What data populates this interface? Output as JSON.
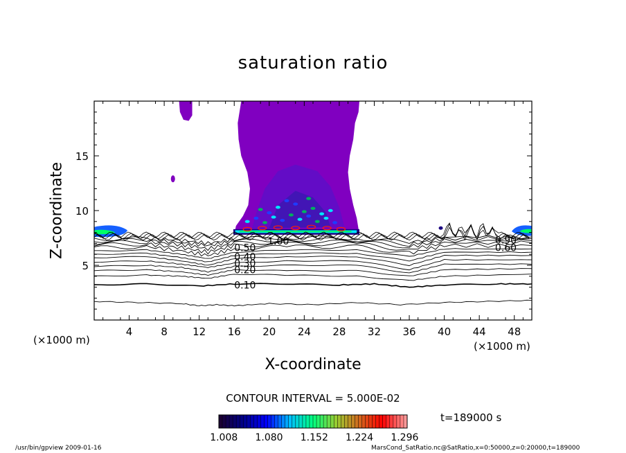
{
  "chart_data": {
    "type": "contour",
    "title": "saturation ratio",
    "xlabel": "X-coordinate",
    "ylabel": "Z-coordinate",
    "x_unit_left": "(×1000 m)",
    "x_unit_right": "(×1000 m)",
    "xlim": [
      0,
      50
    ],
    "ylim": [
      0,
      20
    ],
    "x_ticks": [
      4,
      8,
      12,
      16,
      20,
      24,
      28,
      32,
      36,
      40,
      44,
      48
    ],
    "y_ticks": [
      5,
      10,
      15
    ],
    "contour_interval_text": "CONTOUR INTERVAL = 5.000E-02",
    "contour_labels": [
      "0.10",
      "0.20",
      "0.30",
      "0.40",
      "0.50",
      "0.60",
      "0.90",
      "1.00"
    ],
    "colorbar_ticks": [
      "1.008",
      "1.080",
      "1.152",
      "1.224",
      "1.296"
    ],
    "colorbar_range": [
      1.0,
      1.3
    ],
    "colorbar_colors": [
      "#1a0033",
      "#00008b",
      "#0000ff",
      "#00bfff",
      "#00ff7f",
      "#9acd32",
      "#d2691e",
      "#ff0000",
      "#ff9999"
    ],
    "time_label": "t=189000 s",
    "program_label": "/usr/bin/gpview   2009-01-16",
    "source_label": "MarsCond_SatRatio.nc@SatRatio,x=0:50000,z=0:20000,t=189000",
    "plume_region": {
      "x_range": [
        16,
        30
      ],
      "z_range": [
        7.8,
        20
      ]
    },
    "saturated_color": "#8000c0",
    "contour_lines": [
      {
        "level": 0.1,
        "points": [
          [
            0,
            1.7
          ],
          [
            5,
            1.6
          ],
          [
            10,
            1.5
          ],
          [
            12,
            1.3
          ],
          [
            14,
            1.4
          ],
          [
            16,
            1.3
          ],
          [
            20,
            1.5
          ],
          [
            25,
            1.4
          ],
          [
            30,
            1.6
          ],
          [
            35,
            1.4
          ],
          [
            40,
            1.6
          ],
          [
            45,
            1.7
          ],
          [
            50,
            1.8
          ]
        ]
      },
      {
        "level": 0.1,
        "points": [
          [
            0,
            3.2
          ],
          [
            6,
            3.3
          ],
          [
            12,
            3.1
          ],
          [
            16,
            3.3
          ],
          [
            22,
            3.3
          ],
          [
            28,
            3.2
          ],
          [
            32,
            3.3
          ],
          [
            36,
            3.0
          ],
          [
            40,
            3.2
          ],
          [
            46,
            3.3
          ],
          [
            50,
            3.3
          ]
        ]
      },
      {
        "level": 0.15,
        "points": [
          [
            0,
            4.0
          ],
          [
            6,
            4.1
          ],
          [
            10,
            4.0
          ],
          [
            13,
            3.8
          ],
          [
            16,
            4.2
          ],
          [
            22,
            4.1
          ],
          [
            30,
            4.0
          ],
          [
            36,
            3.6
          ],
          [
            40,
            4.0
          ],
          [
            50,
            4.2
          ]
        ]
      },
      {
        "level": 0.2,
        "points": [
          [
            0,
            4.5
          ],
          [
            6,
            4.6
          ],
          [
            10,
            4.4
          ],
          [
            13,
            4.1
          ],
          [
            16,
            4.6
          ],
          [
            22,
            4.5
          ],
          [
            30,
            4.5
          ],
          [
            36,
            4.0
          ],
          [
            40,
            4.6
          ],
          [
            50,
            4.7
          ]
        ]
      },
      {
        "level": 0.25,
        "points": [
          [
            0,
            4.9
          ],
          [
            6,
            5.0
          ],
          [
            10,
            4.8
          ],
          [
            13,
            4.4
          ],
          [
            16,
            4.9
          ],
          [
            22,
            5.0
          ],
          [
            30,
            5.0
          ],
          [
            36,
            4.3
          ],
          [
            40,
            5.1
          ],
          [
            50,
            5.1
          ]
        ]
      },
      {
        "level": 0.3,
        "points": [
          [
            0,
            5.3
          ],
          [
            6,
            5.4
          ],
          [
            10,
            5.1
          ],
          [
            13,
            4.8
          ],
          [
            16,
            5.2
          ],
          [
            22,
            5.4
          ],
          [
            30,
            5.4
          ],
          [
            36,
            4.6
          ],
          [
            40,
            5.5
          ],
          [
            50,
            5.5
          ]
        ]
      },
      {
        "level": 0.35,
        "points": [
          [
            0,
            5.7
          ],
          [
            6,
            5.8
          ],
          [
            10,
            5.4
          ],
          [
            13,
            5.0
          ],
          [
            16,
            5.6
          ],
          [
            22,
            5.8
          ],
          [
            30,
            5.8
          ],
          [
            36,
            5.0
          ],
          [
            40,
            5.9
          ],
          [
            50,
            5.9
          ]
        ]
      },
      {
        "level": 0.4,
        "points": [
          [
            0,
            6.0
          ],
          [
            6,
            6.1
          ],
          [
            10,
            5.7
          ],
          [
            13,
            5.3
          ],
          [
            16,
            5.9
          ],
          [
            22,
            6.1
          ],
          [
            30,
            6.1
          ],
          [
            36,
            5.4
          ],
          [
            40,
            6.2
          ],
          [
            50,
            6.2
          ]
        ]
      },
      {
        "level": 0.45,
        "points": [
          [
            0,
            6.3
          ],
          [
            6,
            6.4
          ],
          [
            10,
            6.0
          ],
          [
            13,
            5.6
          ],
          [
            16,
            6.2
          ],
          [
            22,
            6.4
          ],
          [
            30,
            6.4
          ],
          [
            36,
            5.8
          ],
          [
            40,
            6.5
          ],
          [
            50,
            6.5
          ]
        ]
      },
      {
        "level": 0.5,
        "points": [
          [
            0,
            6.6
          ],
          [
            6,
            6.7
          ],
          [
            10,
            6.3
          ],
          [
            13,
            5.9
          ],
          [
            16,
            6.5
          ],
          [
            22,
            6.7
          ],
          [
            30,
            6.7
          ],
          [
            36,
            6.1
          ],
          [
            40,
            6.8
          ],
          [
            50,
            6.8
          ]
        ]
      },
      {
        "level": 0.55,
        "points": [
          [
            0,
            6.85
          ],
          [
            6,
            6.95
          ],
          [
            10,
            6.6
          ],
          [
            13,
            6.2
          ],
          [
            16,
            6.8
          ],
          [
            22,
            6.95
          ],
          [
            30,
            6.95
          ],
          [
            36,
            6.4
          ],
          [
            40,
            7.05
          ],
          [
            50,
            7.05
          ]
        ]
      },
      {
        "level": 0.6,
        "points": [
          [
            0,
            7.05
          ],
          [
            6,
            7.15
          ],
          [
            10,
            6.9
          ],
          [
            13,
            6.5
          ],
          [
            16,
            7.0
          ],
          [
            22,
            7.15
          ],
          [
            30,
            7.15
          ],
          [
            36,
            6.7
          ],
          [
            40,
            7.25
          ],
          [
            50,
            7.25
          ]
        ]
      },
      {
        "level": 0.7,
        "points": [
          [
            0,
            7.25
          ],
          [
            6,
            7.3
          ],
          [
            10,
            7.1
          ],
          [
            13,
            6.8
          ],
          [
            16,
            7.2
          ],
          [
            22,
            7.35
          ],
          [
            30,
            7.35
          ],
          [
            36,
            6.9
          ],
          [
            40,
            7.45
          ],
          [
            50,
            7.45
          ]
        ]
      },
      {
        "level": 0.8,
        "points": [
          [
            0,
            7.4
          ],
          [
            6,
            7.45
          ],
          [
            10,
            7.3
          ],
          [
            13,
            7.0
          ],
          [
            16,
            7.4
          ],
          [
            22,
            7.55
          ],
          [
            30,
            7.5
          ],
          [
            36,
            7.1
          ],
          [
            40,
            7.6
          ],
          [
            50,
            7.6
          ]
        ]
      }
    ]
  },
  "colors": {
    "saturated_purple": "#8000c0",
    "dark_blue": "#1a0080",
    "cyan": "#00e5ff",
    "green": "#00ff66",
    "red": "#ff2000"
  }
}
